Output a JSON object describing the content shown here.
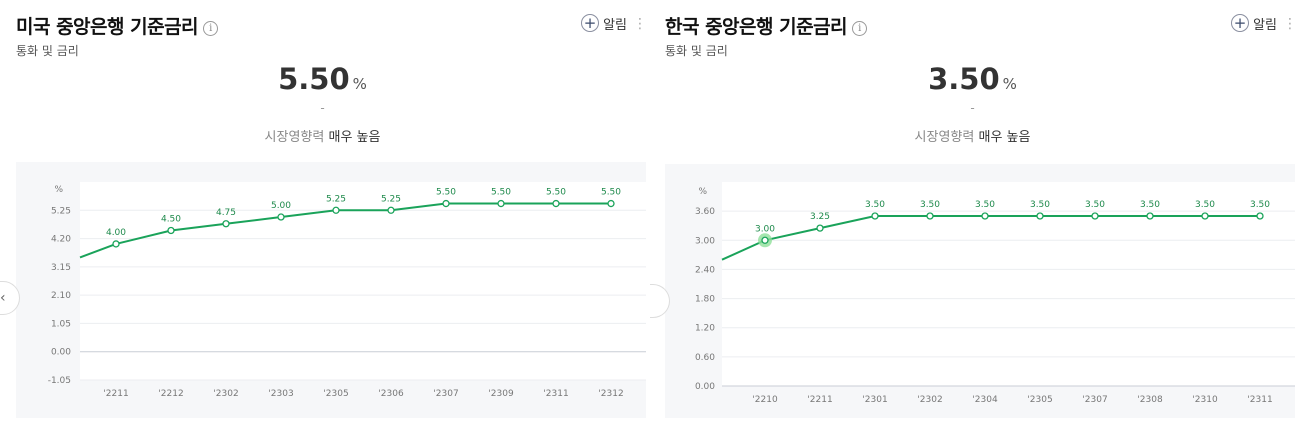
{
  "panels": [
    {
      "id": "us",
      "title": "미국 중앙은행 기준금리",
      "info_glyph": "i",
      "alert_label": "알림",
      "category": "통화 및 금리",
      "value": "5.50",
      "unit": "%",
      "change": "-",
      "impact_label": "시장영향력",
      "impact_level": "매우 높음"
    },
    {
      "id": "kr",
      "title": "한국 중앙은행 기준금리",
      "info_glyph": "i",
      "alert_label": "알림",
      "category": "통화 및 금리",
      "value": "3.50",
      "unit": "%",
      "change": "-",
      "impact_label": "시장영향력",
      "impact_level": "매우 높음"
    }
  ],
  "colors": {
    "line": "#1aa35a",
    "label": "#1f8a4c",
    "chart_bg": "#f6f7f9",
    "highlight": "#8fe09a"
  },
  "chart_data": [
    {
      "type": "line",
      "title": "",
      "ylabel": "%",
      "yticks": [
        "5.25",
        "4.20",
        "3.15",
        "2.10",
        "1.05",
        "0.00",
        "-1.05"
      ],
      "ylim": [
        -1.05,
        6.3
      ],
      "categories": [
        "'2211",
        "'2212",
        "'2302",
        "'2303",
        "'2305",
        "'2306",
        "'2307",
        "'2309",
        "'2311",
        "'2312"
      ],
      "values": [
        4.0,
        4.5,
        4.75,
        5.0,
        5.25,
        5.25,
        5.5,
        5.5,
        5.5,
        5.5
      ],
      "labels": [
        "4.00",
        "4.50",
        "4.75",
        "5.00",
        "5.25",
        "5.25",
        "5.50",
        "5.50",
        "5.50",
        "5.50"
      ],
      "lead_in_value": 3.5,
      "grid": true
    },
    {
      "type": "line",
      "title": "",
      "ylabel": "%",
      "yticks": [
        "3.60",
        "3.00",
        "2.40",
        "1.80",
        "1.20",
        "0.60",
        "0.00"
      ],
      "ylim": [
        0,
        4.2
      ],
      "categories": [
        "'2210",
        "'2211",
        "'2301",
        "'2302",
        "'2304",
        "'2305",
        "'2307",
        "'2308",
        "'2310",
        "'2311"
      ],
      "values": [
        3.0,
        3.25,
        3.5,
        3.5,
        3.5,
        3.5,
        3.5,
        3.5,
        3.5,
        3.5
      ],
      "labels": [
        "3.00",
        "3.25",
        "3.50",
        "3.50",
        "3.50",
        "3.50",
        "3.50",
        "3.50",
        "3.50",
        "3.50"
      ],
      "lead_in_value": 2.6,
      "highlight_index": 0,
      "grid": true
    }
  ]
}
